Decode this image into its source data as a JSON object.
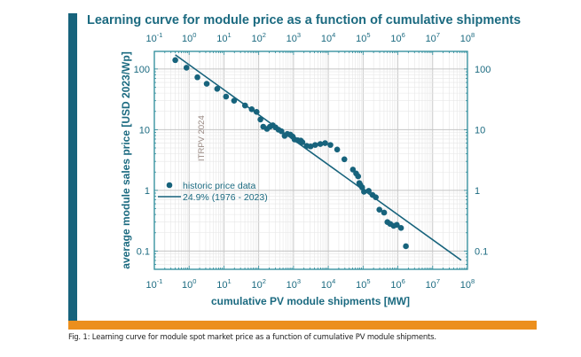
{
  "colors": {
    "accent": "#1b6a80",
    "bar": "#17637c",
    "orange": "#ec8f1d",
    "grid": "#d4d4d4",
    "watermark": "#9a8a84"
  },
  "caption": "Fig. 1: Learning curve for module spot market price as a function of cumulative PV module shipments.",
  "chart_data": {
    "type": "scatter",
    "title": "Learning curve for module price as a function of cumulative shipments",
    "xlabel": "cumulative PV module shipments [MW]",
    "ylabel": "average module sales price [USD 2023/Wp]",
    "xscale": "log",
    "yscale": "log",
    "xlim": [
      0.1,
      100000000
    ],
    "ylim": [
      0.05,
      195
    ],
    "x_ticks": [
      {
        "exp": "-1"
      },
      {
        "exp": "0"
      },
      {
        "exp": "1"
      },
      {
        "exp": "2"
      },
      {
        "exp": "3"
      },
      {
        "exp": "4"
      },
      {
        "exp": "5"
      },
      {
        "exp": "6"
      },
      {
        "exp": "7"
      },
      {
        "exp": "8"
      }
    ],
    "x_tick_base": "10",
    "y_ticks": [
      {
        "v": 100,
        "label": "100"
      },
      {
        "v": 10,
        "label": "10"
      },
      {
        "v": 1,
        "label": "1"
      },
      {
        "v": 0.1,
        "label": "0.1"
      }
    ],
    "grid": true,
    "watermark": "ITRPV 2024",
    "legend": {
      "placement": "left-middle",
      "entries": [
        "historic price data",
        "24.9% (1976 - 2023)"
      ]
    },
    "series": [
      {
        "name": "historic price data",
        "kind": "scatter",
        "x": [
          0.4,
          0.84,
          1.73,
          3.2,
          6.4,
          11.5,
          19.6,
          40.5,
          63,
          87,
          112,
          135,
          173,
          210,
          255,
          305,
          370,
          450,
          555,
          665,
          810,
          950,
          1070,
          1320,
          1620,
          1800,
          2400,
          3100,
          4200,
          5900,
          8100,
          11500,
          18000,
          29000,
          51000,
          63000,
          72000,
          78000,
          84000,
          94000,
          106000,
          145000,
          187000,
          232000,
          294000,
          402000,
          500000,
          603000,
          756000,
          933000,
          1230000,
          1700000
        ],
        "y": [
          140,
          105,
          73,
          57,
          47,
          35,
          30,
          25,
          21.7,
          19.6,
          14.7,
          11.2,
          10.3,
          11.2,
          11.8,
          10.9,
          10,
          9.4,
          7.9,
          8.5,
          8.3,
          7.7,
          6.9,
          6.7,
          6.6,
          6.2,
          5.4,
          5.3,
          5.6,
          5.8,
          6.0,
          5.6,
          4.7,
          3.25,
          2.2,
          1.9,
          1.7,
          1.32,
          1.22,
          1.12,
          0.95,
          0.98,
          0.84,
          0.77,
          0.48,
          0.43,
          0.3,
          0.28,
          0.26,
          0.27,
          0.24,
          0.12
        ]
      },
      {
        "name": "24.9% (1976 - 2023)",
        "kind": "line",
        "x": [
          0.4,
          66000000
        ],
        "y": [
          171,
          0.0706
        ]
      }
    ]
  }
}
